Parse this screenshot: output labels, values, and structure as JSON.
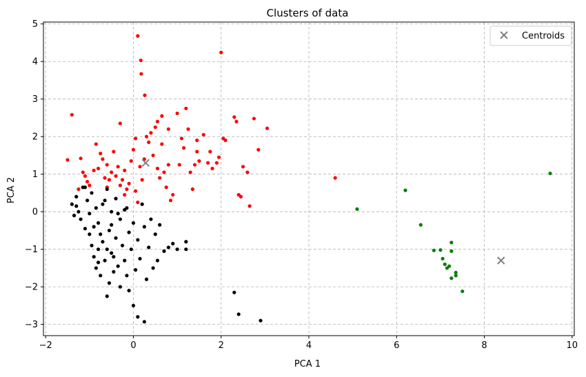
{
  "chart_data": {
    "type": "scatter",
    "title": "Clusters of data",
    "xlabel": "PCA 1",
    "ylabel": "PCA 2",
    "xlim": [
      -2.05,
      10.05
    ],
    "ylim": [
      -3.3,
      5.05
    ],
    "xticks": [
      -2,
      0,
      2,
      4,
      6,
      8,
      10
    ],
    "yticks": [
      -3,
      -2,
      -1,
      0,
      1,
      2,
      3,
      4,
      5
    ],
    "grid": true,
    "legend": {
      "position": "top-right",
      "entries": [
        "Centroids"
      ]
    },
    "colors": {
      "red": "#ff0000",
      "black": "#000000",
      "green": "#008000",
      "centroid": "#808080",
      "grid": "#b0b0b0"
    },
    "series": [
      {
        "color": "red",
        "points": [
          [
            0.1,
            4.68
          ],
          [
            0.17,
            4.03
          ],
          [
            0.18,
            3.67
          ],
          [
            0.26,
            3.1
          ],
          [
            2.0,
            4.24
          ],
          [
            -1.5,
            1.38
          ],
          [
            -1.4,
            2.58
          ],
          [
            -1.2,
            1.42
          ],
          [
            -1.15,
            1.05
          ],
          [
            -1.1,
            0.95
          ],
          [
            -1.05,
            0.8
          ],
          [
            -0.9,
            1.1
          ],
          [
            -0.85,
            1.8
          ],
          [
            -0.8,
            1.15
          ],
          [
            -0.75,
            1.55
          ],
          [
            -0.7,
            1.4
          ],
          [
            -0.65,
            0.9
          ],
          [
            -0.6,
            1.25
          ],
          [
            -0.55,
            0.85
          ],
          [
            -0.5,
            1.05
          ],
          [
            -0.45,
            1.6
          ],
          [
            -0.4,
            0.95
          ],
          [
            -0.35,
            1.2
          ],
          [
            -0.3,
            0.7
          ],
          [
            -0.25,
            0.85
          ],
          [
            -0.2,
            1.1
          ],
          [
            -0.15,
            0.6
          ],
          [
            -0.1,
            0.75
          ],
          [
            -0.05,
            1.35
          ],
          [
            0.0,
            1.65
          ],
          [
            0.05,
            0.55
          ],
          [
            0.1,
            0.25
          ],
          [
            0.15,
            1.2
          ],
          [
            0.2,
            0.85
          ],
          [
            0.25,
            1.4
          ],
          [
            0.3,
            2.0
          ],
          [
            0.35,
            1.85
          ],
          [
            0.4,
            2.1
          ],
          [
            0.45,
            1.5
          ],
          [
            0.5,
            2.25
          ],
          [
            0.55,
            1.15
          ],
          [
            0.6,
            0.9
          ],
          [
            0.65,
            2.55
          ],
          [
            0.7,
            1.05
          ],
          [
            0.75,
            0.65
          ],
          [
            0.8,
            1.25
          ],
          [
            0.85,
            0.3
          ],
          [
            0.9,
            0.45
          ],
          [
            1.0,
            2.62
          ],
          [
            1.05,
            1.25
          ],
          [
            1.1,
            1.95
          ],
          [
            1.15,
            1.7
          ],
          [
            1.2,
            2.75
          ],
          [
            1.25,
            2.2
          ],
          [
            1.3,
            1.05
          ],
          [
            1.35,
            0.6
          ],
          [
            1.4,
            1.25
          ],
          [
            1.45,
            1.6
          ],
          [
            1.5,
            1.35
          ],
          [
            1.6,
            2.05
          ],
          [
            1.7,
            1.3
          ],
          [
            1.75,
            1.6
          ],
          [
            1.8,
            1.15
          ],
          [
            1.9,
            1.3
          ],
          [
            1.95,
            1.45
          ],
          [
            2.05,
            1.95
          ],
          [
            2.1,
            1.9
          ],
          [
            2.3,
            2.52
          ],
          [
            2.35,
            2.4
          ],
          [
            2.45,
            0.4
          ],
          [
            2.5,
            1.2
          ],
          [
            2.6,
            1.05
          ],
          [
            2.65,
            0.15
          ],
          [
            2.75,
            2.48
          ],
          [
            2.85,
            1.65
          ],
          [
            3.05,
            2.22
          ],
          [
            4.6,
            0.9
          ],
          [
            -0.2,
            0.45
          ],
          [
            -0.6,
            0.65
          ],
          [
            -1.0,
            0.7
          ],
          [
            -0.3,
            2.35
          ],
          [
            0.55,
            2.4
          ],
          [
            0.65,
            1.8
          ],
          [
            -1.25,
            0.6
          ],
          [
            0.05,
            1.95
          ],
          [
            0.8,
            2.2
          ],
          [
            1.45,
            1.9
          ],
          [
            2.4,
            0.45
          ]
        ]
      },
      {
        "color": "black",
        "points": [
          [
            -1.4,
            0.2
          ],
          [
            -1.35,
            -0.1
          ],
          [
            -1.3,
            0.4
          ],
          [
            -1.25,
            0.0
          ],
          [
            -1.2,
            -0.2
          ],
          [
            -1.15,
            0.65
          ],
          [
            -1.1,
            -0.45
          ],
          [
            -1.05,
            0.3
          ],
          [
            -1.0,
            -0.05
          ],
          [
            -1.0,
            -0.6
          ],
          [
            -0.95,
            0.5
          ],
          [
            -0.95,
            -0.9
          ],
          [
            -0.9,
            -1.2
          ],
          [
            -0.85,
            0.1
          ],
          [
            -0.85,
            -1.5
          ],
          [
            -0.8,
            -0.3
          ],
          [
            -0.8,
            -1.0
          ],
          [
            -0.75,
            -1.7
          ],
          [
            -0.7,
            0.2
          ],
          [
            -0.7,
            -0.8
          ],
          [
            -0.65,
            -1.3
          ],
          [
            -0.6,
            -2.25
          ],
          [
            -0.6,
            0.6
          ],
          [
            -0.55,
            -0.5
          ],
          [
            -0.55,
            -1.9
          ],
          [
            -0.5,
            -1.1
          ],
          [
            -0.5,
            0.0
          ],
          [
            -0.45,
            -1.6
          ],
          [
            -0.4,
            -0.7
          ],
          [
            -0.4,
            0.35
          ],
          [
            -0.35,
            -1.45
          ],
          [
            -0.3,
            -2.0
          ],
          [
            -0.3,
            -0.2
          ],
          [
            -0.25,
            -0.9
          ],
          [
            -0.2,
            -1.3
          ],
          [
            -0.15,
            -1.7
          ],
          [
            -0.15,
            0.1
          ],
          [
            -0.1,
            -0.55
          ],
          [
            -0.1,
            -2.1
          ],
          [
            -0.05,
            -1.0
          ],
          [
            0.0,
            -2.5
          ],
          [
            0.0,
            -0.3
          ],
          [
            0.05,
            -1.55
          ],
          [
            0.1,
            -0.75
          ],
          [
            0.1,
            -2.8
          ],
          [
            0.15,
            -1.25
          ],
          [
            0.2,
            0.2
          ],
          [
            0.25,
            -0.4
          ],
          [
            0.25,
            -2.93
          ],
          [
            0.3,
            -1.8
          ],
          [
            0.35,
            -0.95
          ],
          [
            0.4,
            -0.2
          ],
          [
            0.45,
            -1.5
          ],
          [
            0.5,
            -0.6
          ],
          [
            0.55,
            -1.3
          ],
          [
            0.6,
            -0.35
          ],
          [
            0.7,
            -1.05
          ],
          [
            0.8,
            -0.95
          ],
          [
            0.9,
            -0.85
          ],
          [
            1.0,
            -1.0
          ],
          [
            1.2,
            -1.0
          ],
          [
            1.2,
            -0.8
          ],
          [
            2.3,
            -2.15
          ],
          [
            2.4,
            -2.73
          ],
          [
            2.9,
            -2.9
          ],
          [
            -1.1,
            0.65
          ],
          [
            -0.65,
            0.3
          ],
          [
            -0.75,
            -0.6
          ],
          [
            -0.45,
            -1.2
          ],
          [
            -0.9,
            -0.4
          ],
          [
            -0.2,
            0.05
          ],
          [
            -0.6,
            -1.0
          ],
          [
            -1.3,
            0.15
          ],
          [
            -0.35,
            -0.05
          ],
          [
            -0.8,
            -1.35
          ],
          [
            -0.5,
            -0.35
          ]
        ]
      },
      {
        "color": "green",
        "points": [
          [
            5.1,
            0.07
          ],
          [
            6.2,
            0.57
          ],
          [
            6.55,
            -0.35
          ],
          [
            6.85,
            -1.03
          ],
          [
            7.0,
            -1.02
          ],
          [
            7.05,
            -1.25
          ],
          [
            7.1,
            -1.4
          ],
          [
            7.15,
            -1.5
          ],
          [
            7.2,
            -1.45
          ],
          [
            7.25,
            -0.82
          ],
          [
            7.25,
            -1.05
          ],
          [
            7.25,
            -1.77
          ],
          [
            7.35,
            -1.62
          ],
          [
            7.35,
            -1.7
          ],
          [
            7.5,
            -2.12
          ],
          [
            9.5,
            1.02
          ]
        ]
      }
    ],
    "centroids": [
      [
        0.28,
        1.3
      ],
      [
        8.38,
        -1.3
      ]
    ]
  }
}
